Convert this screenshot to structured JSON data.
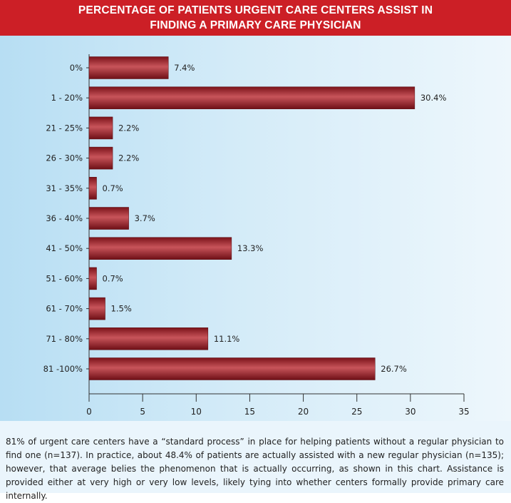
{
  "title_line1": "PERCENTAGE OF PATIENTS URGENT CARE CENTERS ASSIST IN",
  "title_line2": "FINDING A PRIMARY CARE PHYSICIAN",
  "caption": "81% of urgent care centers have a “standard process” in place for helping patients without a regular physician to find one (n=137). In practice, about 48.4% of patients are actually assisted with a new regular physician (n=135); however, that average belies the phenomenon that is actually occurring, as shown in this chart. Assistance is provided either at very high or very low levels, likely tying into whether centers formally provide primary care internally.",
  "colors": {
    "header": "#cc1f26",
    "bar": "#8e1a22",
    "bar_highlight": "#c8545a"
  },
  "chart_data": {
    "type": "bar",
    "orientation": "horizontal",
    "title": "PERCENTAGE OF PATIENTS URGENT CARE CENTERS ASSIST IN FINDING A PRIMARY CARE PHYSICIAN",
    "categories": [
      "0%",
      "1 - 20%",
      "21 - 25%",
      "26 - 30%",
      "31  - 35%",
      "36 - 40%",
      "41 - 50%",
      "51 - 60%",
      "61 - 70%",
      "71 - 80%",
      "81 -100%"
    ],
    "values": [
      7.4,
      30.4,
      2.2,
      2.2,
      0.7,
      3.7,
      13.3,
      0.7,
      1.5,
      11.1,
      26.7
    ],
    "value_labels": [
      "7.4%",
      "30.4%",
      "2.2%",
      "2.2%",
      "0.7%",
      "3.7%",
      "13.3%",
      "0.7%",
      "1.5%",
      "11.1%",
      "26.7%"
    ],
    "xlim": [
      0,
      35
    ],
    "xticks": [
      0,
      5,
      10,
      15,
      20,
      25,
      30,
      35
    ],
    "xlabel": "",
    "ylabel": "",
    "grid": false,
    "legend": "none"
  }
}
